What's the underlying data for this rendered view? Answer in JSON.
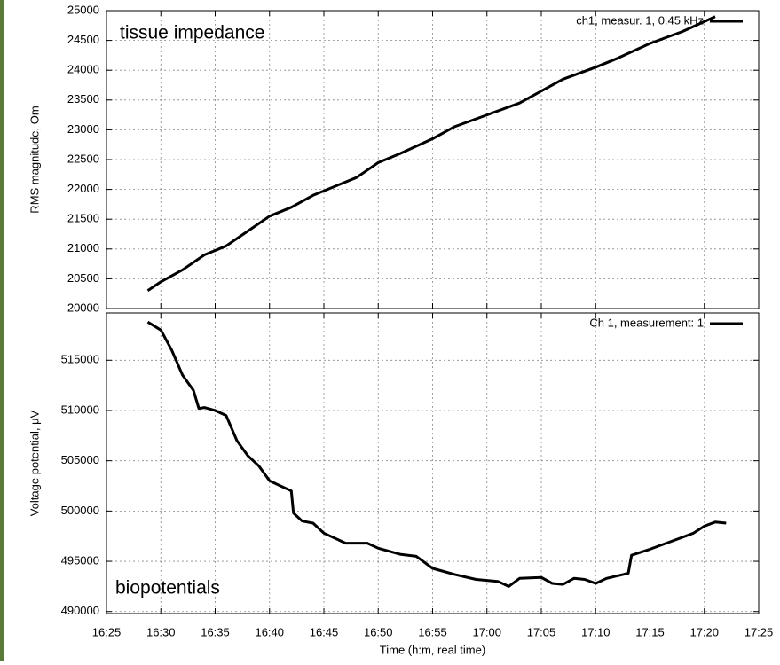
{
  "chart_data": [
    {
      "type": "line",
      "annotation": "tissue impedance",
      "ylabel": "RMS magnitude, Om",
      "xlim": [
        985,
        1045
      ],
      "ylim": [
        20000,
        25000
      ],
      "yticks": [
        20000,
        20500,
        21000,
        21500,
        22000,
        22500,
        23000,
        23500,
        24000,
        24500,
        25000
      ],
      "grid": true,
      "legend": "upper right",
      "series": [
        {
          "name": "ch1, measur. 1, 0.45 kHz",
          "color": "#000000",
          "x": [
            988.8,
            990,
            992,
            994,
            996,
            998,
            1000,
            1002,
            1004,
            1006,
            1008,
            1010,
            1012,
            1015,
            1017,
            1020,
            1023,
            1025,
            1027,
            1030,
            1032,
            1035,
            1038,
            1041
          ],
          "values": [
            20300,
            20450,
            20650,
            20900,
            21050,
            21300,
            21550,
            21700,
            21900,
            22050,
            22200,
            22450,
            22600,
            22850,
            23050,
            23250,
            23450,
            23650,
            23850,
            24050,
            24200,
            24450,
            24650,
            24900
          ]
        }
      ]
    },
    {
      "type": "line",
      "annotation": "biopotentials",
      "ylabel": "Voltage potential, µV",
      "xlabel": "Time (h:m, real time)",
      "xlim": [
        985,
        1045
      ],
      "ylim": [
        489800,
        519700
      ],
      "xticks": [
        {
          "value": 985,
          "label": "16:25"
        },
        {
          "value": 990,
          "label": "16:30"
        },
        {
          "value": 995,
          "label": "16:35"
        },
        {
          "value": 1000,
          "label": "16:40"
        },
        {
          "value": 1005,
          "label": "16:45"
        },
        {
          "value": 1010,
          "label": "16:50"
        },
        {
          "value": 1015,
          "label": "16:55"
        },
        {
          "value": 1020,
          "label": "17:00"
        },
        {
          "value": 1025,
          "label": "17:05"
        },
        {
          "value": 1030,
          "label": "17:10"
        },
        {
          "value": 1035,
          "label": "17:15"
        },
        {
          "value": 1040,
          "label": "17:20"
        },
        {
          "value": 1045,
          "label": "17:25"
        }
      ],
      "yticks": [
        490000,
        495000,
        500000,
        505000,
        510000,
        515000
      ],
      "grid": true,
      "legend": "upper right",
      "series": [
        {
          "name": "Ch 1, measurement: 1",
          "color": "#000000",
          "x": [
            988.8,
            990,
            991,
            992,
            993,
            993.5,
            994,
            995,
            996,
            997,
            998,
            999,
            1000,
            1001,
            1002,
            1002.2,
            1003,
            1004,
            1005,
            1007,
            1009,
            1010,
            1012,
            1013.5,
            1015,
            1017,
            1019,
            1021,
            1022,
            1023,
            1025,
            1026,
            1027,
            1028,
            1029,
            1030,
            1031,
            1033,
            1033.3,
            1035,
            1037,
            1039,
            1040,
            1041,
            1042
          ],
          "values": [
            518800,
            518000,
            516000,
            513500,
            512000,
            510200,
            510300,
            510000,
            509500,
            507000,
            505500,
            504500,
            503000,
            502500,
            502000,
            499800,
            499000,
            498800,
            497800,
            496800,
            496800,
            496300,
            495700,
            495500,
            494300,
            493700,
            493200,
            493000,
            492500,
            493300,
            493400,
            492800,
            492700,
            493300,
            493200,
            492800,
            493300,
            493800,
            495600,
            496200,
            497000,
            497800,
            498500,
            498900,
            498800
          ]
        }
      ]
    }
  ]
}
